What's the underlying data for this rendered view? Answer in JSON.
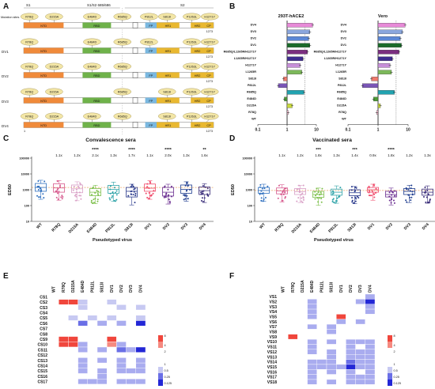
{
  "panels": {
    "A": "A",
    "B": "B",
    "C": "C",
    "D": "D",
    "E": "E",
    "F": "F"
  },
  "panel_a": {
    "top_labels": [
      "S1",
      "S1/S2 685/686",
      "S2"
    ],
    "mutation_sites_label": "Mutation sites",
    "top_mutations": [
      "R78Q",
      "D215A",
      "E484D",
      "R685Q",
      "P812L",
      "S813I",
      "P1263L",
      "H1271Y"
    ],
    "domains": [
      "NTD",
      "RBD",
      "FP",
      "HR1",
      "HR2",
      "CP"
    ],
    "length": "1273",
    "variants": [
      {
        "name": "DV1",
        "mutations": [
          "R78Q",
          "E484D",
          "R685Q",
          "P812L",
          "P1263L",
          "H1271Y"
        ]
      },
      {
        "name": "DV2",
        "mutations": [
          "R78Q",
          "D215A",
          "E484D",
          "R685Q",
          "P1263L",
          "H1271Y"
        ]
      },
      {
        "name": "DV3",
        "mutations": [
          "R78Q",
          "D215A",
          "R685Q",
          "S813I",
          "P1263L",
          "H1271Y"
        ]
      },
      {
        "name": "DV4",
        "mutations": [
          "R78Q",
          "D215A",
          "E484D",
          "R685Q",
          "S813I",
          "P1263L",
          "H1271Y"
        ]
      }
    ],
    "start": "1"
  },
  "panel_b": {
    "titles": [
      "293T-hACE2",
      "Vero"
    ],
    "rows": [
      "DV4",
      "DV3",
      "DV2",
      "DV1",
      "R685Q/L1265R/H1271Y",
      "L1265R/H1271Y",
      "H1271Y",
      "L1265R",
      "S813I",
      "P812L",
      "R685Q",
      "E484D",
      "D215A",
      "R78Q",
      "WT"
    ],
    "x_ticks": [
      "0.1",
      "1",
      "10"
    ],
    "chart_data": [
      {
        "type": "bar",
        "title": "293T-hACE2",
        "categories": [
          "DV4",
          "DV3",
          "DV2",
          "DV1",
          "R685Q/L1265R/H1271Y",
          "L1265R/H1271Y",
          "H1271Y",
          "L1265R",
          "S813I",
          "P812L",
          "R685Q",
          "E484D",
          "D215A",
          "R78Q",
          "WT"
        ],
        "values": [
          7.5,
          6,
          5.5,
          6,
          5,
          3.5,
          2.8,
          3.2,
          0.75,
          0.5,
          3.8,
          0.8,
          1.5,
          1.1,
          1
        ],
        "xscale": "log",
        "xlim": [
          0.1,
          10
        ]
      },
      {
        "type": "bar",
        "title": "Vero",
        "categories": [
          "DV4",
          "DV3",
          "DV2",
          "DV1",
          "R685Q/L1265R/H1271Y",
          "L1265R/H1271Y",
          "H1271Y",
          "L1265R",
          "S813I",
          "P812L",
          "R685Q",
          "E484D",
          "D215A",
          "R78Q",
          "WT"
        ],
        "values": [
          8,
          6.5,
          5.5,
          6,
          5,
          3,
          2.5,
          2.8,
          0.6,
          0.3,
          3.5,
          0.7,
          1.2,
          0.9,
          1
        ],
        "xscale": "log",
        "xlim": [
          0.1,
          10
        ]
      }
    ],
    "colors": [
      "#e78ad8",
      "#8aa6dd",
      "#5c88d6",
      "#1b6b2a",
      "#7b2e80",
      "#3f2d8f",
      "#c78fd9",
      "#7cb85a",
      "#f07b6e",
      "#7a56b6",
      "#22a3b0",
      "#4e9b38",
      "#c8d83e",
      "#f5b9cf",
      "#f5b9cf"
    ]
  },
  "panel_c": {
    "title": "Convalescence sera",
    "ylabel": "ED50",
    "xlabel": "Pseudotyped virus",
    "y_ticks": [
      "100000",
      "10000",
      "1000",
      "100",
      "10"
    ],
    "fold": [
      "",
      "1.1x",
      "1.2x",
      "2.1x",
      "1.3x",
      "1.7x",
      "1.1x",
      "2.0x",
      "1.3x",
      "1.6x"
    ],
    "stars": [
      "",
      "",
      "",
      "****",
      "",
      "****",
      "",
      "****",
      "",
      "**"
    ]
  },
  "panel_d": {
    "title": "Vaccinated sera",
    "ylabel": "ED50",
    "xlabel": "Pseudotyped virus",
    "y_ticks": [
      "100000",
      "10000",
      "1000",
      "100",
      "10"
    ],
    "fold": [
      "",
      "1.1x",
      "1.2x",
      "1.8x",
      "1.3x",
      "1.4x",
      "0.9x",
      "1.8x",
      "1.2x",
      "1.3x"
    ],
    "stars": [
      "",
      "",
      "",
      "***",
      "",
      "***",
      "",
      "****",
      "",
      ""
    ]
  },
  "box_chart_data": [
    {
      "type": "box",
      "title": "Convalescence sera",
      "categories": [
        "WT",
        "R78Q",
        "D215A",
        "E484D",
        "P812L",
        "S813I",
        "DV1",
        "DV2",
        "DV3",
        "DV4"
      ],
      "median": [
        1400,
        1300,
        1150,
        700,
        1050,
        800,
        1250,
        700,
        1050,
        880
      ],
      "q1": [
        800,
        700,
        650,
        420,
        600,
        350,
        800,
        400,
        600,
        500
      ],
      "q3": [
        2500,
        2400,
        2000,
        1200,
        1900,
        1400,
        2300,
        1400,
        2000,
        1500
      ],
      "ylim": [
        10,
        100000
      ],
      "yscale": "log"
    },
    {
      "type": "box",
      "title": "Vaccinated sera",
      "categories": [
        "WT",
        "R78Q",
        "D215A",
        "E484D",
        "P812L",
        "S813I",
        "DV1",
        "DV2",
        "DV3",
        "DV4"
      ],
      "median": [
        900,
        850,
        750,
        500,
        700,
        650,
        1000,
        500,
        780,
        700
      ],
      "q1": [
        600,
        550,
        500,
        330,
        450,
        420,
        700,
        350,
        500,
        450
      ],
      "q3": [
        1400,
        1300,
        1200,
        800,
        1100,
        1000,
        1400,
        800,
        1200,
        1100
      ],
      "ylim": [
        10,
        100000
      ],
      "yscale": "log"
    }
  ],
  "categories": [
    "WT",
    "R78Q",
    "D215A",
    "E484D",
    "P812L",
    "S813I",
    "DV1",
    "DV2",
    "DV3",
    "DV4"
  ],
  "box_colors": [
    "#2e6fbf",
    "#d75a8e",
    "#d9a0c6",
    "#7cbf4a",
    "#2ea3a8",
    "#2a3a8c",
    "#f04a6a",
    "#6a2d90",
    "#1f3d8f",
    "#3a2d7a"
  ],
  "panel_e": {
    "columns": [
      "WT",
      "R78Q",
      "D215A",
      "E484D",
      "P812L",
      "S813I",
      "DV1",
      "DV2",
      "DV3",
      "DV4"
    ],
    "rows": [
      "CS1",
      "CS2",
      "CS3",
      "CS4",
      "CS5",
      "CS6",
      "CS7",
      "CS8",
      "CS9",
      "CS10",
      "CS11",
      "CS12",
      "CS13",
      "CS14",
      "CS15",
      "CS16",
      "CS17"
    ],
    "legend": [
      "8",
      "4",
      "2",
      "1",
      "0.5",
      "0.25",
      "0.125"
    ]
  },
  "panel_f": {
    "columns": [
      "WT",
      "R78Q",
      "D215A",
      "E484D",
      "P812L",
      "S813I",
      "DV1",
      "DV2",
      "DV3",
      "DV4"
    ],
    "rows": [
      "VS1",
      "VS2",
      "VS3",
      "VS4",
      "VS5",
      "VS6",
      "VS7",
      "VS8",
      "VS9",
      "VS10",
      "VS11",
      "VS12",
      "VS13",
      "VS14",
      "VS15",
      "VS16",
      "VS17",
      "VS18"
    ],
    "legend": [
      "8",
      "4",
      "2",
      "1",
      "0.5",
      "0.25",
      "0.125"
    ]
  },
  "heatmap_data": {
    "E": [
      [
        0,
        0,
        0,
        0,
        0,
        0,
        0,
        0,
        0,
        0
      ],
      [
        0,
        3,
        3,
        1,
        0,
        0,
        1,
        0,
        0,
        0
      ],
      [
        0,
        0,
        0,
        1,
        0,
        0,
        0,
        1,
        0,
        1
      ],
      [
        0,
        0,
        0,
        0,
        0,
        0,
        0,
        0,
        0,
        0
      ],
      [
        0,
        0,
        1,
        0,
        1,
        0,
        1,
        0,
        0,
        1
      ],
      [
        0,
        0,
        0,
        -2,
        0,
        -1,
        0,
        -1,
        0,
        -3
      ],
      [
        0,
        0,
        0,
        0,
        0,
        0,
        0,
        0,
        0,
        0
      ],
      [
        0,
        0,
        0,
        0,
        0,
        0,
        0,
        0,
        0,
        0
      ],
      [
        0,
        3,
        3,
        0,
        0,
        0,
        3,
        0,
        0,
        0
      ],
      [
        0,
        3,
        3,
        -1,
        0,
        0,
        2,
        -1,
        0,
        0
      ],
      [
        0,
        0,
        0,
        -1,
        0,
        -1,
        0,
        -2,
        -1,
        -3
      ],
      [
        0,
        0,
        0,
        0,
        0,
        0,
        0,
        0,
        0,
        0
      ],
      [
        0,
        0,
        0,
        -1,
        0,
        -1,
        0,
        -1,
        0,
        -1
      ],
      [
        0,
        0,
        0,
        -1,
        0,
        0,
        0,
        -1,
        0,
        -1
      ],
      [
        0,
        0,
        0,
        -1,
        0,
        -1,
        0,
        -1,
        -1,
        -1
      ],
      [
        0,
        0,
        0,
        0,
        0,
        -1,
        0,
        0,
        0,
        0
      ],
      [
        0,
        0,
        0,
        -1,
        -1,
        -1,
        0,
        -1,
        -1,
        -1
      ]
    ],
    "F": [
      [
        0,
        0,
        0,
        0,
        0,
        0,
        0,
        0,
        0,
        -1
      ],
      [
        0,
        0,
        0,
        -1,
        0,
        0,
        0,
        0,
        -1,
        -3
      ],
      [
        0,
        0,
        0,
        -1,
        0,
        0,
        0,
        0,
        0,
        -1
      ],
      [
        0,
        0,
        0,
        -1,
        0,
        0,
        0,
        0,
        0,
        -1
      ],
      [
        0,
        0,
        0,
        -1,
        0,
        0,
        3,
        0,
        0,
        0
      ],
      [
        0,
        0,
        0,
        0,
        0,
        0,
        -1,
        0,
        -1,
        0
      ],
      [
        0,
        0,
        0,
        -1,
        0,
        -1,
        0,
        0,
        0,
        0
      ],
      [
        0,
        0,
        0,
        0,
        0,
        -1,
        0,
        0,
        0,
        0
      ],
      [
        0,
        3,
        0,
        0,
        0,
        0,
        0,
        0,
        0,
        0
      ],
      [
        0,
        0,
        0,
        -1,
        0,
        -1,
        0,
        -1,
        -1,
        -1
      ],
      [
        0,
        0,
        0,
        -1,
        0,
        0,
        0,
        -1,
        0,
        -1
      ],
      [
        0,
        0,
        0,
        -1,
        0,
        -1,
        0,
        -1,
        -1,
        -1
      ],
      [
        0,
        0,
        0,
        0,
        0,
        -1,
        0,
        -1,
        -1,
        -1
      ],
      [
        0,
        0,
        0,
        -1,
        -1,
        -1,
        0,
        -2,
        -1,
        -1
      ],
      [
        0,
        0,
        0,
        -1,
        -1,
        -1,
        -1,
        -3,
        -1,
        -1
      ],
      [
        0,
        0,
        0,
        -1,
        0,
        -1,
        0,
        -1,
        0,
        -1
      ],
      [
        0,
        0,
        0,
        -1,
        0,
        0,
        0,
        -1,
        -1,
        -1
      ],
      [
        0,
        0,
        0,
        -1,
        0,
        -1,
        0,
        -1,
        -1,
        -1
      ]
    ]
  }
}
